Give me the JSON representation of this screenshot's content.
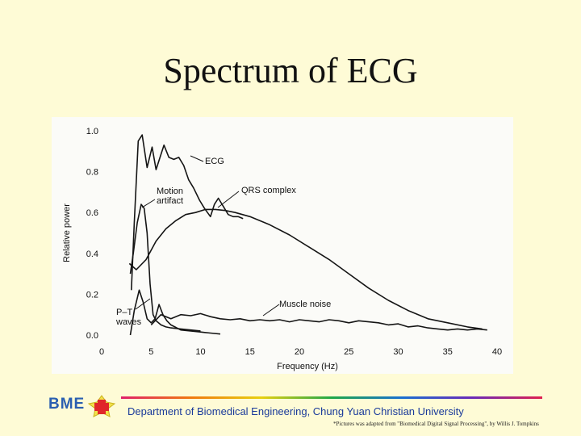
{
  "slide": {
    "title": "Spectrum of ECG"
  },
  "footer": {
    "logo_text": "BME",
    "department": "Department of Biomedical Engineering, Chung Yuan Christian University",
    "credit": "*Pictures was adapted from \"Biomedical Digital Signal Processing\", by Willis J. Tompkins"
  },
  "chart_data": {
    "type": "line",
    "xlabel": "Frequency (Hz)",
    "ylabel": "Relative power",
    "xlim": [
      0,
      40
    ],
    "ylim": [
      0,
      1.0
    ],
    "xticks": [
      "0",
      "5",
      "10",
      "15",
      "20",
      "25",
      "30",
      "35",
      "40"
    ],
    "yticks": [
      "0.0",
      "0.2",
      "0.4",
      "0.6",
      "0.8",
      "1.0"
    ],
    "grid": false,
    "series": [
      {
        "name": "ECG",
        "x": [
          3.0,
          3.3,
          3.7,
          4.1,
          4.6,
          5.1,
          5.5,
          5.9,
          6.3,
          6.8,
          7.3,
          7.8,
          8.3,
          8.8,
          9.3,
          9.9,
          10.4,
          11.0,
          11.4,
          11.8,
          12.3,
          12.8,
          13.3,
          13.8,
          14.3
        ],
        "y": [
          0.22,
          0.55,
          0.95,
          0.98,
          0.82,
          0.92,
          0.81,
          0.87,
          0.93,
          0.87,
          0.86,
          0.87,
          0.83,
          0.76,
          0.72,
          0.66,
          0.62,
          0.58,
          0.64,
          0.67,
          0.63,
          0.59,
          0.58,
          0.58,
          0.57
        ]
      },
      {
        "name": "QRS complex",
        "x": [
          2.8,
          3.5,
          4.5,
          5.5,
          6.5,
          7.5,
          8.5,
          9.5,
          10.5,
          11.5,
          12.5,
          13.5,
          15,
          17,
          19,
          21,
          23,
          25,
          27,
          29,
          31,
          33,
          35,
          37,
          38.5
        ],
        "y": [
          0.35,
          0.32,
          0.37,
          0.46,
          0.52,
          0.56,
          0.59,
          0.6,
          0.615,
          0.615,
          0.61,
          0.6,
          0.58,
          0.54,
          0.49,
          0.43,
          0.37,
          0.3,
          0.23,
          0.17,
          0.12,
          0.08,
          0.06,
          0.04,
          0.03
        ]
      },
      {
        "name": "Motion artifact",
        "x": [
          2.9,
          3.2,
          3.6,
          4.0,
          4.3,
          4.6,
          4.9,
          5.2,
          5.5,
          6.0,
          6.5,
          7.0,
          8.0,
          9.0,
          10.0
        ],
        "y": [
          0.3,
          0.4,
          0.55,
          0.64,
          0.62,
          0.5,
          0.25,
          0.1,
          0.07,
          0.05,
          0.04,
          0.035,
          0.03,
          0.025,
          0.02
        ]
      },
      {
        "name": "P–T waves",
        "x": [
          2.9,
          3.3,
          3.8,
          4.2,
          4.6,
          5.0,
          5.4,
          5.8,
          6.2,
          6.6,
          7.0,
          7.4,
          8.0,
          9.0,
          10.0,
          11.0,
          12.0
        ],
        "y": [
          0.0,
          0.12,
          0.22,
          0.16,
          0.08,
          0.06,
          0.08,
          0.15,
          0.1,
          0.07,
          0.05,
          0.04,
          0.025,
          0.02,
          0.015,
          0.01,
          0.005
        ]
      },
      {
        "name": "Muscle noise",
        "x": [
          5,
          6,
          7,
          8,
          9,
          10,
          11,
          12,
          13,
          14,
          15,
          16,
          17,
          18,
          19,
          20,
          21,
          22,
          23,
          24,
          25,
          26,
          27,
          28,
          29,
          30,
          31,
          32,
          33,
          34,
          35,
          36,
          37,
          38,
          39
        ],
        "y": [
          0.05,
          0.1,
          0.08,
          0.1,
          0.095,
          0.105,
          0.09,
          0.08,
          0.075,
          0.08,
          0.07,
          0.075,
          0.07,
          0.075,
          0.065,
          0.075,
          0.07,
          0.065,
          0.075,
          0.07,
          0.06,
          0.07,
          0.065,
          0.06,
          0.05,
          0.055,
          0.04,
          0.045,
          0.035,
          0.03,
          0.025,
          0.03,
          0.025,
          0.03,
          0.025
        ]
      }
    ],
    "annotations": [
      "ECG",
      "QRS complex",
      "Motion artifact",
      "P–T waves",
      "Muscle noise"
    ]
  }
}
